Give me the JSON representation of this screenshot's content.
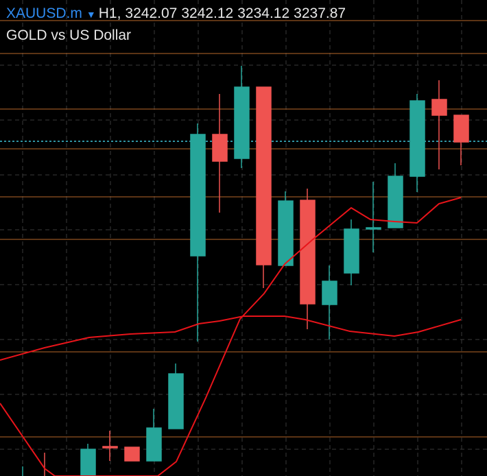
{
  "header": {
    "symbol": "XAUUSD.m",
    "timeframe": "H1,",
    "prices": [
      3242.07,
      3242.12,
      3234.12,
      3237.87
    ],
    "description": "GOLD vs US Dollar"
  }
}
